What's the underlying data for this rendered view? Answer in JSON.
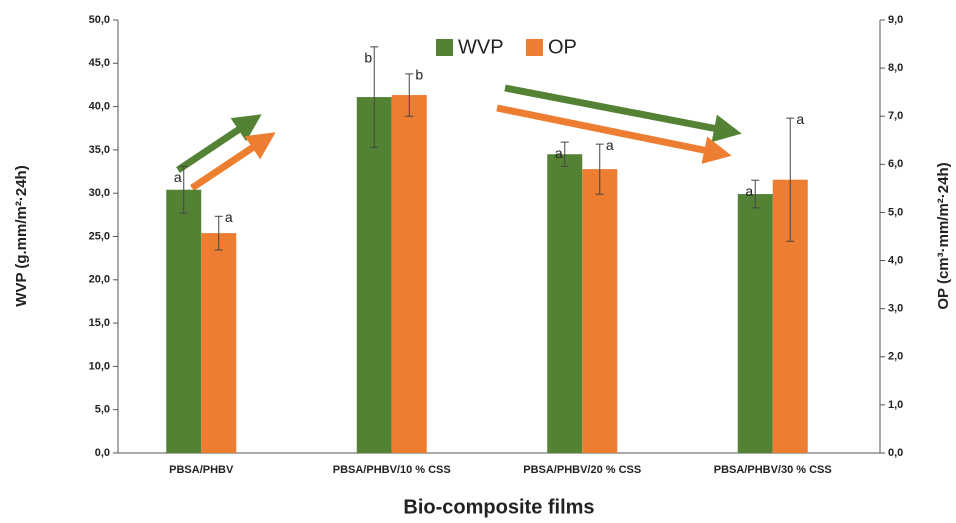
{
  "chart_data": {
    "type": "bar",
    "x_label": "Bio-composite films",
    "y_label": "WVP (g.mm/m²·24h)",
    "y2_label": "OP (cm³·mm/m²·24h)",
    "categories": [
      "PBSA/PHBV",
      "PBSA/PHBV/10 % CSS",
      "PBSA/PHBV/20 % CSS",
      "PBSA/PHBV/30 % CSS"
    ],
    "series": [
      {
        "name": "WVP",
        "color": "#548235",
        "values": [
          30.4,
          41.1,
          34.5,
          29.9
        ],
        "errors": [
          2.7,
          5.8,
          1.4,
          1.6
        ],
        "significance": [
          "a",
          "b",
          "a",
          "a"
        ]
      },
      {
        "name": "OP",
        "color": "#ed7d31",
        "axis": "y2",
        "values": [
          4.57,
          7.44,
          5.9,
          5.68
        ],
        "errors": [
          0.35,
          0.44,
          0.52,
          1.28
        ],
        "significance": [
          "a",
          "b",
          "a",
          "a"
        ]
      }
    ],
    "ylim": [
      0,
      50
    ],
    "yticks": [
      {
        "value": 0,
        "label": "0,0"
      },
      {
        "value": 5,
        "label": "5,0"
      },
      {
        "value": 10,
        "label": "10,0"
      },
      {
        "value": 15,
        "label": "15,0"
      },
      {
        "value": 20,
        "label": "20,0"
      },
      {
        "value": 25,
        "label": "25,0"
      },
      {
        "value": 30,
        "label": "30,0"
      },
      {
        "value": 35,
        "label": "35,0"
      },
      {
        "value": 40,
        "label": "40,0"
      },
      {
        "value": 45,
        "label": "45,0"
      },
      {
        "value": 50,
        "label": "50,0"
      }
    ],
    "y2lim": [
      0,
      9
    ],
    "y2ticks": [
      {
        "value": 0,
        "label": "0,0"
      },
      {
        "value": 1,
        "label": "1,0"
      },
      {
        "value": 2,
        "label": "2,0"
      },
      {
        "value": 3,
        "label": "3,0"
      },
      {
        "value": 4,
        "label": "4,0"
      },
      {
        "value": 5,
        "label": "5,0"
      },
      {
        "value": 6,
        "label": "6,0"
      },
      {
        "value": 7,
        "label": "7,0"
      },
      {
        "value": 8,
        "label": "8,0"
      },
      {
        "value": 9,
        "label": "9,0"
      }
    ],
    "legend": "top"
  }
}
